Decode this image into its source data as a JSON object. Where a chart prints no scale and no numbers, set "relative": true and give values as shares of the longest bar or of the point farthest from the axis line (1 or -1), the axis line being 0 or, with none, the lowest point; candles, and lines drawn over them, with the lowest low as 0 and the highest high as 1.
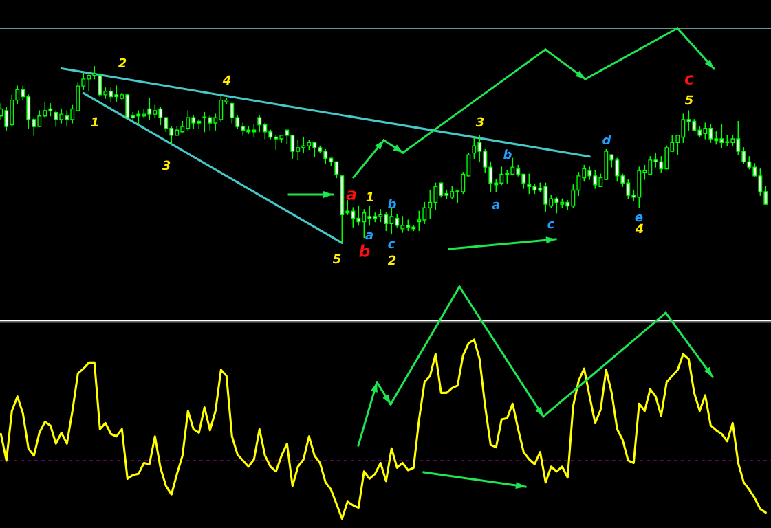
{
  "chart_data": [
    {
      "type": "candlestick",
      "relative": true,
      "categories": [
        null,
        null,
        null,
        null,
        null,
        null,
        null,
        null,
        null,
        null,
        null,
        null,
        null,
        null,
        null,
        null,
        null,
        null,
        null,
        null,
        null,
        null,
        null,
        null,
        null,
        null,
        null,
        null,
        null,
        null,
        null,
        null,
        null,
        null,
        null,
        null,
        null,
        null,
        null,
        null,
        null,
        null,
        null,
        null,
        null,
        null,
        null,
        null,
        null,
        null,
        null,
        null,
        null,
        null,
        null,
        null,
        null,
        null,
        null,
        null,
        null,
        null,
        null,
        null,
        null,
        null,
        null,
        null,
        null,
        null,
        null,
        null,
        null,
        null,
        null,
        null,
        null,
        null,
        null,
        null,
        null,
        null,
        null,
        null,
        null,
        null,
        null,
        null,
        null,
        null,
        null,
        null,
        null,
        null,
        null,
        null,
        null,
        null,
        null,
        null,
        null,
        null,
        null,
        null,
        null,
        null,
        null,
        null,
        null,
        null,
        null,
        null,
        null,
        null,
        null,
        null,
        null,
        null,
        null,
        null,
        null,
        null,
        null,
        null,
        null,
        null,
        null,
        null,
        null,
        null,
        null,
        null,
        null,
        null,
        null,
        null,
        null,
        null,
        null,
        null
      ],
      "ohlc": [
        [
          0.72,
          0.79,
          0.7,
          0.76
        ],
        [
          0.75,
          0.77,
          0.64,
          0.66
        ],
        [
          0.67,
          0.84,
          0.66,
          0.81
        ],
        [
          0.81,
          0.89,
          0.79,
          0.87
        ],
        [
          0.87,
          0.89,
          0.81,
          0.83
        ],
        [
          0.83,
          0.84,
          0.65,
          0.7
        ],
        [
          0.7,
          0.71,
          0.61,
          0.66
        ],
        [
          0.66,
          0.75,
          0.66,
          0.72
        ],
        [
          0.72,
          0.8,
          0.71,
          0.75
        ],
        [
          0.76,
          0.79,
          0.72,
          0.75
        ],
        [
          0.74,
          0.75,
          0.66,
          0.7
        ],
        [
          0.7,
          0.76,
          0.68,
          0.73
        ],
        [
          0.72,
          0.75,
          0.66,
          0.7
        ],
        [
          0.7,
          0.78,
          0.68,
          0.76
        ],
        [
          0.75,
          0.91,
          0.75,
          0.89
        ],
        [
          0.89,
          0.97,
          0.87,
          0.93
        ],
        [
          0.93,
          0.96,
          0.86,
          0.95
        ],
        [
          0.95,
          1.0,
          0.93,
          0.96
        ],
        [
          0.95,
          0.96,
          0.83,
          0.84
        ],
        [
          0.84,
          0.88,
          0.82,
          0.86
        ],
        [
          0.86,
          0.88,
          0.8,
          0.83
        ],
        [
          0.84,
          0.89,
          0.8,
          0.83
        ],
        [
          0.82,
          0.85,
          0.81,
          0.84
        ],
        [
          0.84,
          0.84,
          0.71,
          0.71
        ],
        [
          0.72,
          0.74,
          0.7,
          0.71
        ],
        [
          0.73,
          0.75,
          0.67,
          0.72
        ],
        [
          0.72,
          0.76,
          0.71,
          0.73
        ],
        [
          0.76,
          0.82,
          0.7,
          0.73
        ],
        [
          0.73,
          0.78,
          0.71,
          0.75
        ],
        [
          0.76,
          0.77,
          0.67,
          0.71
        ],
        [
          0.71,
          0.71,
          0.63,
          0.65
        ],
        [
          0.65,
          0.66,
          0.56,
          0.61
        ],
        [
          0.61,
          0.66,
          0.61,
          0.64
        ],
        [
          0.63,
          0.69,
          0.63,
          0.66
        ],
        [
          0.65,
          0.75,
          0.64,
          0.71
        ],
        [
          0.71,
          0.72,
          0.65,
          0.68
        ],
        [
          0.69,
          0.7,
          0.65,
          0.68
        ],
        [
          0.71,
          0.74,
          0.63,
          0.71
        ],
        [
          0.71,
          0.72,
          0.64,
          0.68
        ],
        [
          0.68,
          0.73,
          0.64,
          0.71
        ],
        [
          0.7,
          0.83,
          0.69,
          0.81
        ],
        [
          0.8,
          0.82,
          0.79,
          0.81
        ],
        [
          0.79,
          0.8,
          0.68,
          0.71
        ],
        [
          0.71,
          0.72,
          0.65,
          0.66
        ],
        [
          0.66,
          0.68,
          0.61,
          0.64
        ],
        [
          0.64,
          0.66,
          0.62,
          0.63
        ],
        [
          0.63,
          0.67,
          0.6,
          0.64
        ],
        [
          0.71,
          0.72,
          0.63,
          0.67
        ],
        [
          0.67,
          0.68,
          0.59,
          0.63
        ],
        [
          0.63,
          0.64,
          0.59,
          0.6
        ],
        [
          0.6,
          0.61,
          0.53,
          0.59
        ],
        [
          0.59,
          0.61,
          0.57,
          0.61
        ],
        [
          0.64,
          0.64,
          0.56,
          0.61
        ],
        [
          0.61,
          0.61,
          0.48,
          0.52
        ],
        [
          0.52,
          0.58,
          0.47,
          0.54
        ],
        [
          0.54,
          0.6,
          0.51,
          0.55
        ],
        [
          0.55,
          0.58,
          0.53,
          0.57
        ],
        [
          0.57,
          0.57,
          0.49,
          0.54
        ],
        [
          0.54,
          0.55,
          0.51,
          0.52
        ],
        [
          0.52,
          0.53,
          0.45,
          0.48
        ],
        [
          0.48,
          0.48,
          0.44,
          0.46
        ],
        [
          0.46,
          0.46,
          0.37,
          0.39
        ],
        [
          0.38,
          0.38,
          0.0,
          0.16
        ],
        [
          0.17,
          0.24,
          0.16,
          0.18
        ],
        [
          0.18,
          0.2,
          0.09,
          0.14
        ],
        [
          0.14,
          0.21,
          0.1,
          0.12
        ],
        [
          0.12,
          0.19,
          0.03,
          0.17
        ],
        [
          0.15,
          0.21,
          0.1,
          0.14
        ],
        [
          0.15,
          0.17,
          0.12,
          0.14
        ],
        [
          0.15,
          0.19,
          0.12,
          0.16
        ],
        [
          0.16,
          0.17,
          0.07,
          0.11
        ],
        [
          0.11,
          0.2,
          0.05,
          0.15
        ],
        [
          0.14,
          0.16,
          0.09,
          0.1
        ],
        [
          0.08,
          0.15,
          0.06,
          0.1
        ],
        [
          0.1,
          0.13,
          0.07,
          0.09
        ],
        [
          0.09,
          0.1,
          0.07,
          0.08
        ],
        [
          0.12,
          0.18,
          0.07,
          0.13
        ],
        [
          0.13,
          0.23,
          0.11,
          0.2
        ],
        [
          0.2,
          0.3,
          0.14,
          0.23
        ],
        [
          0.23,
          0.34,
          0.19,
          0.32
        ],
        [
          0.34,
          0.34,
          0.26,
          0.27
        ],
        [
          0.28,
          0.3,
          0.25,
          0.27
        ],
        [
          0.26,
          0.32,
          0.25,
          0.29
        ],
        [
          0.29,
          0.3,
          0.23,
          0.29
        ],
        [
          0.29,
          0.4,
          0.28,
          0.39
        ],
        [
          0.38,
          0.51,
          0.38,
          0.5
        ],
        [
          0.51,
          0.6,
          0.48,
          0.55
        ],
        [
          0.57,
          0.61,
          0.46,
          0.52
        ],
        [
          0.52,
          0.53,
          0.4,
          0.43
        ],
        [
          0.43,
          0.46,
          0.29,
          0.34
        ],
        [
          0.34,
          0.36,
          0.29,
          0.33
        ],
        [
          0.34,
          0.43,
          0.33,
          0.39
        ],
        [
          0.39,
          0.41,
          0.34,
          0.39
        ],
        [
          0.39,
          0.48,
          0.39,
          0.43
        ],
        [
          0.42,
          0.44,
          0.38,
          0.39
        ],
        [
          0.39,
          0.39,
          0.31,
          0.34
        ],
        [
          0.33,
          0.39,
          0.28,
          0.32
        ],
        [
          0.32,
          0.33,
          0.28,
          0.3
        ],
        [
          0.31,
          0.34,
          0.29,
          0.3
        ],
        [
          0.32,
          0.34,
          0.18,
          0.22
        ],
        [
          0.21,
          0.27,
          0.2,
          0.25
        ],
        [
          0.25,
          0.26,
          0.17,
          0.23
        ],
        [
          0.22,
          0.25,
          0.2,
          0.23
        ],
        [
          0.23,
          0.24,
          0.19,
          0.21
        ],
        [
          0.21,
          0.33,
          0.2,
          0.3
        ],
        [
          0.3,
          0.4,
          0.27,
          0.38
        ],
        [
          0.37,
          0.44,
          0.35,
          0.42
        ],
        [
          0.41,
          0.43,
          0.36,
          0.38
        ],
        [
          0.38,
          0.41,
          0.31,
          0.33
        ],
        [
          0.32,
          0.39,
          0.32,
          0.37
        ],
        [
          0.36,
          0.53,
          0.36,
          0.52
        ],
        [
          0.5,
          0.5,
          0.43,
          0.47
        ],
        [
          0.47,
          0.48,
          0.35,
          0.38
        ],
        [
          0.38,
          0.39,
          0.32,
          0.34
        ],
        [
          0.34,
          0.36,
          0.25,
          0.27
        ],
        [
          0.27,
          0.3,
          0.24,
          0.26
        ],
        [
          0.26,
          0.43,
          0.2,
          0.41
        ],
        [
          0.4,
          0.44,
          0.36,
          0.41
        ],
        [
          0.39,
          0.49,
          0.39,
          0.47
        ],
        [
          0.47,
          0.51,
          0.43,
          0.46
        ],
        [
          0.46,
          0.49,
          0.4,
          0.42
        ],
        [
          0.42,
          0.55,
          0.42,
          0.54
        ],
        [
          0.52,
          0.61,
          0.52,
          0.57
        ],
        [
          0.57,
          0.61,
          0.5,
          0.61
        ],
        [
          0.6,
          0.73,
          0.57,
          0.7
        ],
        [
          0.7,
          0.75,
          0.64,
          0.69
        ],
        [
          0.69,
          0.7,
          0.64,
          0.64
        ],
        [
          0.64,
          0.66,
          0.6,
          0.61
        ],
        [
          0.62,
          0.68,
          0.59,
          0.65
        ],
        [
          0.65,
          0.67,
          0.57,
          0.59
        ],
        [
          0.59,
          0.63,
          0.56,
          0.58
        ],
        [
          0.59,
          0.67,
          0.54,
          0.57
        ],
        [
          0.57,
          0.61,
          0.55,
          0.57
        ],
        [
          0.57,
          0.61,
          0.55,
          0.59
        ],
        [
          0.59,
          0.69,
          0.5,
          0.52
        ],
        [
          0.52,
          0.54,
          0.45,
          0.46
        ],
        [
          0.46,
          0.49,
          0.42,
          0.43
        ],
        [
          0.43,
          0.45,
          0.38,
          0.38
        ],
        [
          0.38,
          0.42,
          0.27,
          0.29
        ],
        [
          0.29,
          0.32,
          0.22,
          0.22
        ]
      ],
      "series": [
        {
          "type": "line",
          "color": "#46c8c8",
          "values": [
            null,
            null,
            null,
            null,
            null,
            null,
            null,
            null,
            null,
            null,
            null,
            0.99,
            null,
            null,
            null,
            null,
            null,
            null,
            null,
            null,
            null,
            null,
            null,
            null,
            null,
            null,
            null,
            null,
            null,
            null,
            null,
            null,
            null,
            null,
            null,
            null,
            null,
            null,
            null,
            null,
            null,
            null,
            null,
            null,
            null,
            null,
            null,
            null,
            null,
            null,
            null,
            null,
            null,
            null,
            null,
            null,
            null,
            null,
            null,
            null,
            null,
            null,
            null,
            null,
            null,
            null,
            null,
            null,
            null,
            null,
            null,
            null,
            null,
            null,
            null,
            null,
            null,
            null,
            null,
            null,
            null,
            null,
            null,
            null,
            null,
            null,
            null,
            null,
            null,
            null,
            null,
            null,
            null,
            null,
            null,
            null,
            null,
            null,
            null,
            null,
            null,
            null,
            null,
            null,
            null,
            null,
            null,
            0.49,
            null,
            null,
            null,
            null,
            null,
            null,
            null,
            null,
            null,
            null,
            null,
            null,
            null,
            null,
            null,
            null,
            null,
            null,
            null,
            null,
            null,
            null,
            null,
            null,
            null,
            null,
            null,
            null,
            null,
            null,
            null,
            null
          ]
        },
        {
          "type": "line",
          "color": "#46c8c8",
          "values": [
            null,
            null,
            null,
            null,
            null,
            null,
            null,
            null,
            null,
            null,
            null,
            null,
            null,
            null,
            null,
            0.85,
            null,
            null,
            null,
            null,
            null,
            null,
            null,
            null,
            null,
            null,
            null,
            null,
            null,
            null,
            null,
            null,
            null,
            null,
            null,
            null,
            null,
            null,
            null,
            null,
            null,
            null,
            null,
            null,
            null,
            null,
            null,
            null,
            null,
            null,
            null,
            null,
            null,
            null,
            null,
            null,
            null,
            null,
            null,
            null,
            null,
            null,
            0.0,
            null,
            null,
            null,
            null,
            null,
            null,
            null,
            null,
            null,
            null,
            null,
            null,
            null,
            null,
            null,
            null,
            null,
            null,
            null,
            null,
            null,
            null,
            null,
            null,
            null,
            null,
            null,
            null,
            null,
            null,
            null,
            null,
            null,
            null,
            null,
            null,
            null,
            null,
            null,
            null,
            null,
            null,
            null,
            null,
            null,
            null,
            null,
            null,
            null,
            null,
            null,
            null,
            null,
            null,
            null,
            null,
            null,
            null,
            null,
            null,
            null,
            null,
            null,
            null,
            null,
            null,
            null,
            null,
            null,
            null,
            null,
            null,
            null,
            null,
            null,
            null,
            null
          ]
        }
      ],
      "annotations": [
        "2",
        "1",
        "4",
        "3",
        "a",
        "1",
        "b",
        "a",
        "c",
        "b",
        "5",
        "2",
        "3",
        "b",
        "a",
        "c",
        "d",
        "e",
        "4",
        "5",
        "c"
      ]
    },
    {
      "type": "line",
      "relative": true,
      "categories": [
        null,
        null,
        null,
        null,
        null,
        null,
        null,
        null,
        null,
        null,
        null,
        null,
        null,
        null,
        null,
        null,
        null,
        null,
        null,
        null,
        null,
        null,
        null,
        null,
        null,
        null,
        null,
        null,
        null,
        null,
        null,
        null,
        null,
        null,
        null,
        null,
        null,
        null,
        null,
        null,
        null,
        null,
        null,
        null,
        null,
        null,
        null,
        null,
        null,
        null,
        null,
        null,
        null,
        null,
        null,
        null,
        null,
        null,
        null,
        null,
        null,
        null,
        null,
        null,
        null,
        null,
        null,
        null,
        null,
        null,
        null,
        null,
        null,
        null,
        null,
        null,
        null,
        null,
        null,
        null,
        null,
        null,
        null,
        null,
        null,
        null,
        null,
        null,
        null,
        null,
        null,
        null,
        null,
        null,
        null,
        null,
        null,
        null,
        null,
        null,
        null,
        null,
        null,
        null,
        null,
        null,
        null,
        null,
        null,
        null,
        null,
        null,
        null,
        null,
        null,
        null,
        null,
        null,
        null,
        null,
        null,
        null,
        null,
        null,
        null,
        null,
        null,
        null,
        null,
        null,
        null,
        null,
        null,
        null,
        null,
        null,
        null,
        null,
        null,
        null
      ],
      "series": [
        {
          "color": "#ffff00",
          "values": [
            0.22,
            0.0,
            0.41,
            0.53,
            0.39,
            0.1,
            0.04,
            0.23,
            0.32,
            0.29,
            0.14,
            0.23,
            0.14,
            0.41,
            0.72,
            0.76,
            0.81,
            0.81,
            0.26,
            0.31,
            0.22,
            0.2,
            0.26,
            -0.15,
            -0.12,
            -0.11,
            -0.02,
            -0.03,
            0.2,
            -0.06,
            -0.21,
            -0.28,
            -0.11,
            0.04,
            0.41,
            0.26,
            0.23,
            0.44,
            0.25,
            0.41,
            0.75,
            0.7,
            0.2,
            0.05,
            0.0,
            -0.05,
            0.01,
            0.26,
            0.04,
            -0.05,
            -0.09,
            0.04,
            0.14,
            -0.21,
            -0.05,
            0.01,
            0.2,
            0.04,
            -0.02,
            -0.18,
            -0.24,
            -0.36,
            -0.48,
            -0.34,
            -0.37,
            -0.39,
            -0.09,
            -0.15,
            -0.11,
            -0.02,
            -0.17,
            0.1,
            -0.06,
            -0.02,
            -0.08,
            -0.06,
            0.34,
            0.65,
            0.7,
            0.88,
            0.56,
            0.56,
            0.6,
            0.62,
            0.87,
            0.97,
            1.0,
            0.84,
            0.45,
            0.13,
            0.11,
            0.34,
            0.35,
            0.47,
            0.26,
            0.07,
            0.01,
            -0.03,
            0.07,
            -0.18,
            -0.05,
            -0.09,
            -0.05,
            -0.14,
            0.45,
            0.66,
            0.76,
            0.53,
            0.31,
            0.42,
            0.75,
            0.56,
            0.26,
            0.17,
            0.0,
            -0.02,
            0.47,
            0.41,
            0.59,
            0.53,
            0.37,
            0.65,
            0.7,
            0.75,
            0.88,
            0.84,
            0.56,
            0.41,
            0.54,
            0.29,
            0.25,
            0.22,
            0.16,
            0.31,
            -0.02,
            -0.18,
            -0.24,
            -0.31,
            -0.4,
            -0.43
          ]
        }
      ],
      "ref_lines": [
        {
          "axis": "y",
          "value": 0,
          "color": "#800080",
          "line_style": "dashed"
        }
      ]
    }
  ]
}
